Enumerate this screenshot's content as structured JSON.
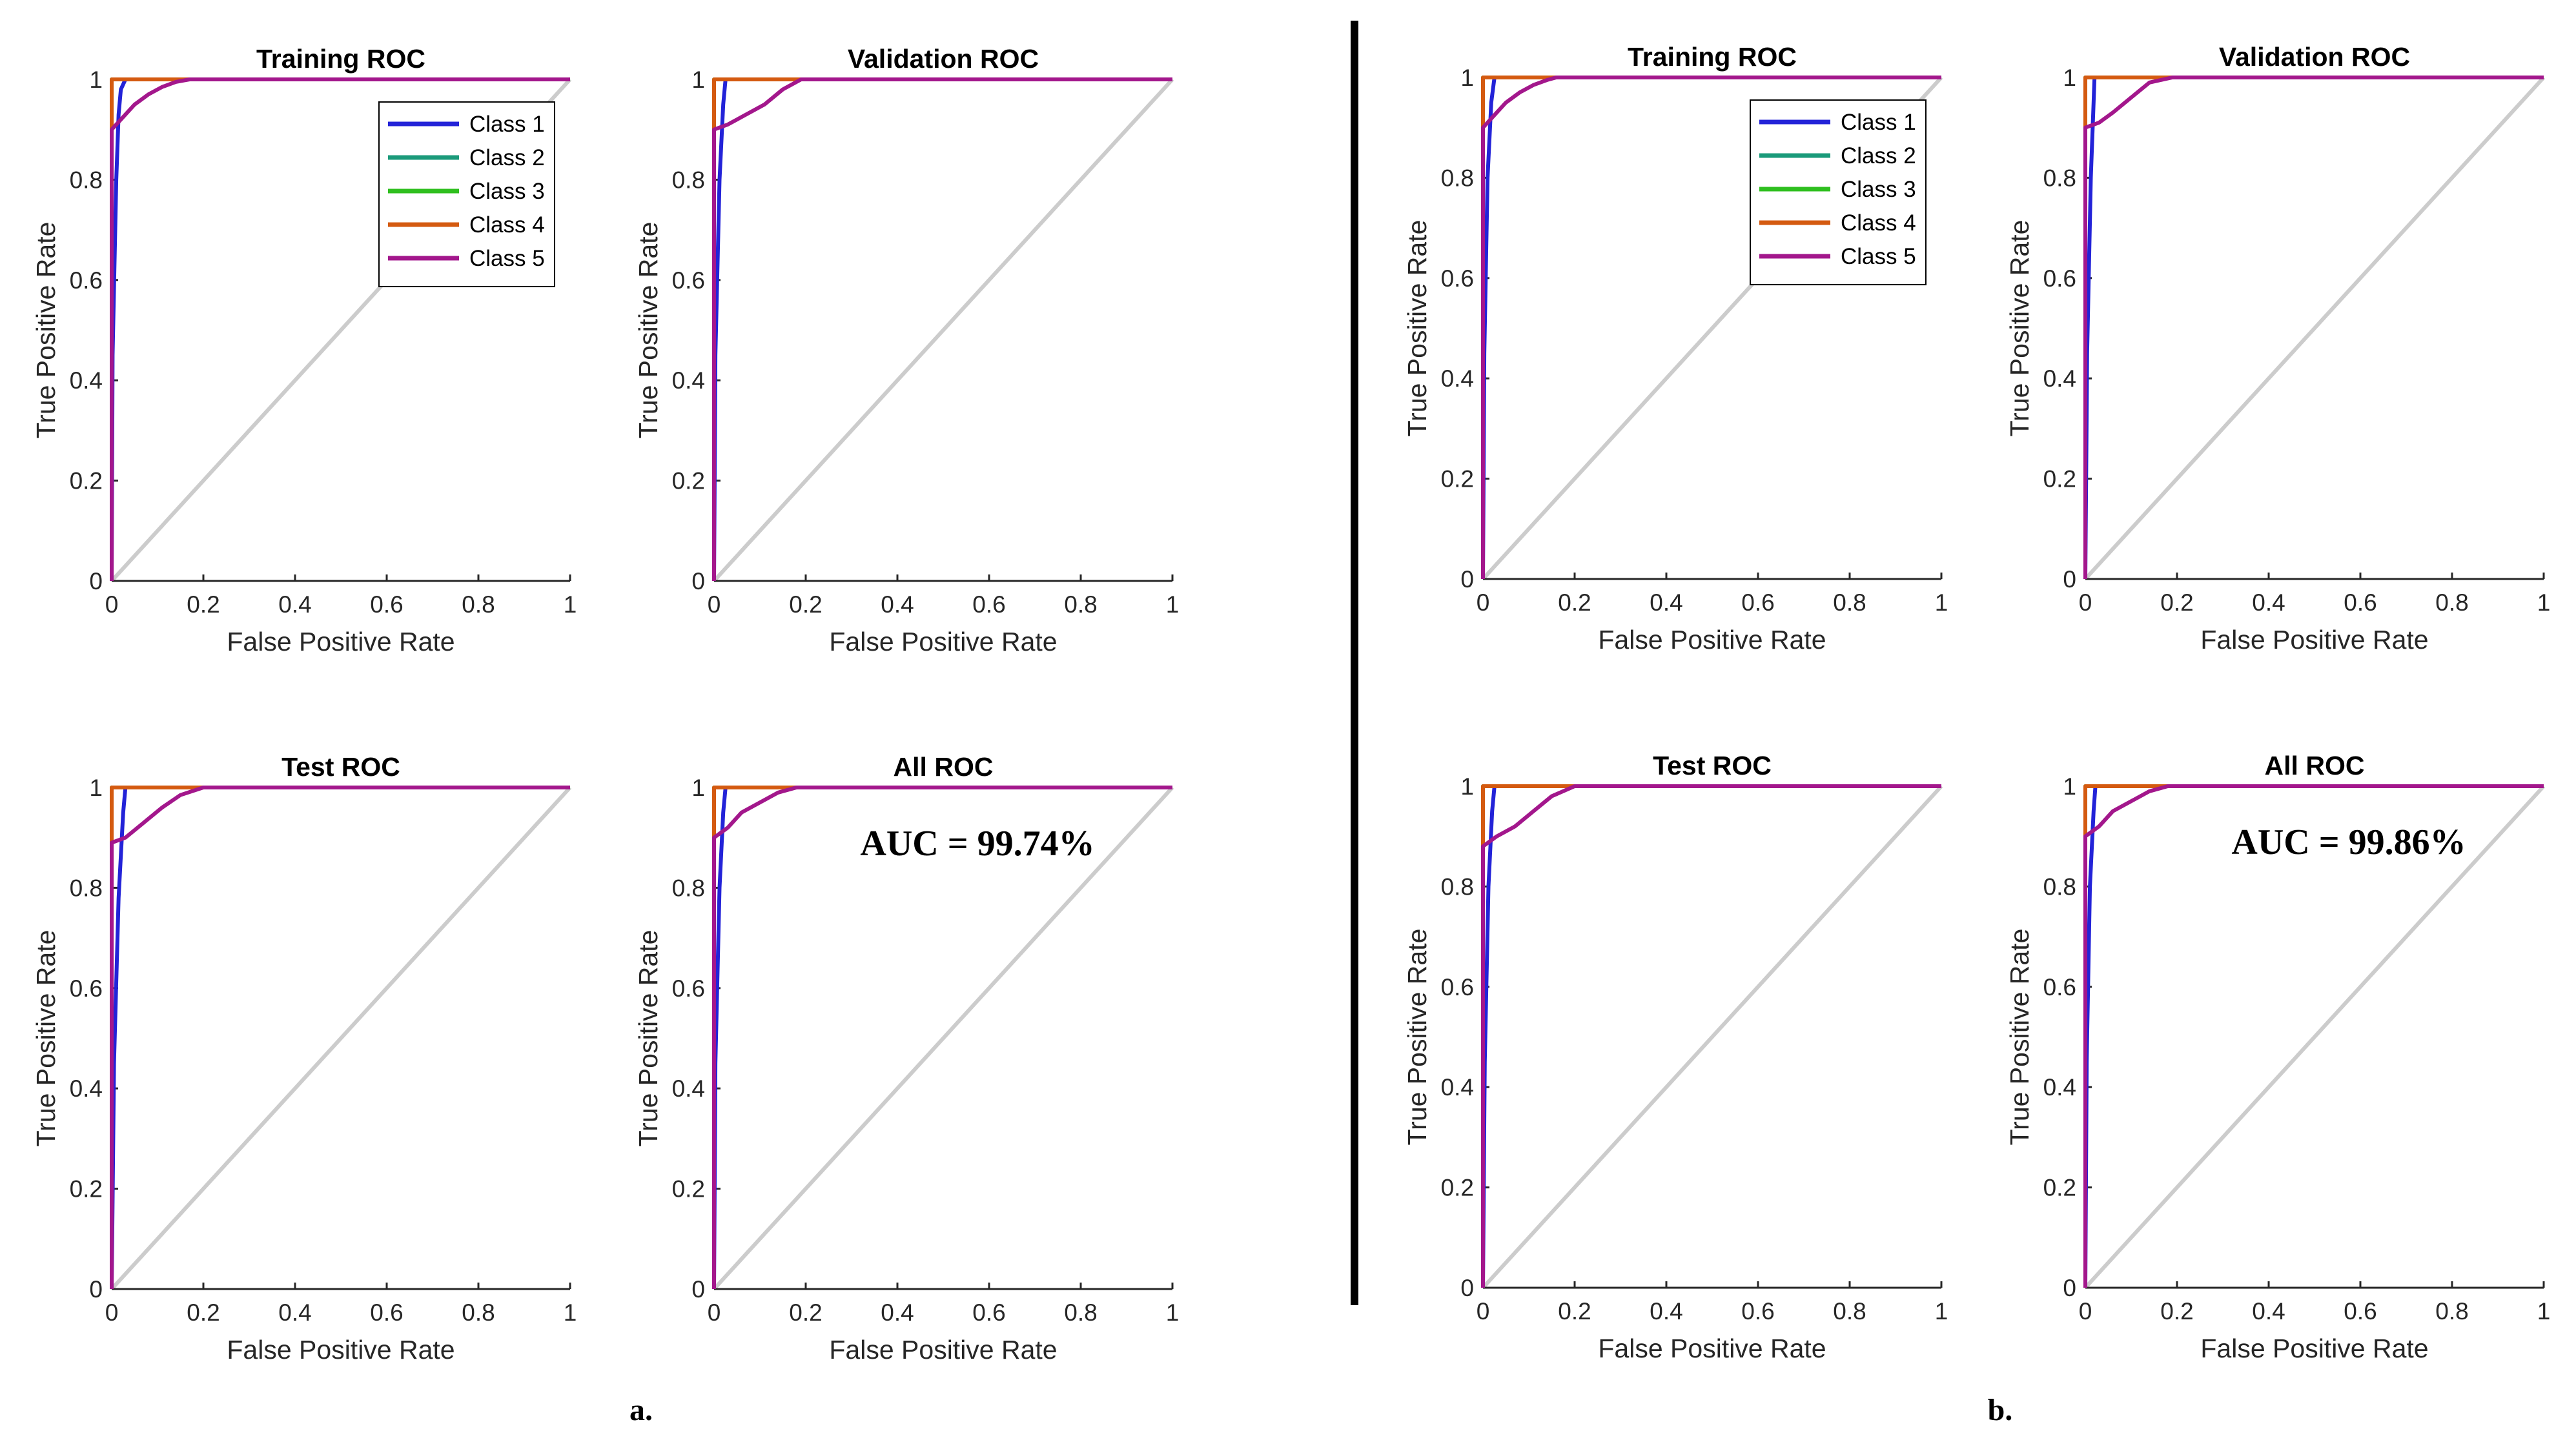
{
  "colors": {
    "Class 1": "#2323d8",
    "Class 2": "#1a9a7a",
    "Class 3": "#2fbf1f",
    "Class 4": "#d45a10",
    "Class 5": "#a3178c",
    "diagonal": "#cccccc",
    "axis": "#262626",
    "divider": "#000000"
  },
  "panel_labels": [
    "a.",
    "b."
  ],
  "common": {
    "xlabel": "False Positive Rate",
    "ylabel": "True Positive Rate",
    "xlim": [
      0,
      1
    ],
    "ylim": [
      0,
      1
    ],
    "xticks": [
      "0",
      "0.2",
      "0.4",
      "0.6",
      "0.8",
      "1"
    ],
    "yticks": [
      "0",
      "0.2",
      "0.4",
      "0.6",
      "0.8",
      "1"
    ],
    "grid": false,
    "reference_line": "diagonal"
  },
  "chart_data": [
    {
      "type": "line",
      "group": "a.",
      "title": "Training ROC",
      "xlabel": "False Positive Rate",
      "ylabel": "True Positive Rate",
      "xlim": [
        0,
        1
      ],
      "ylim": [
        0,
        1
      ],
      "legend": {
        "position": "top-right",
        "entries": [
          "Class 1",
          "Class 2",
          "Class 3",
          "Class 4",
          "Class 5"
        ]
      },
      "series": [
        {
          "name": "Class 1",
          "x": [
            0,
            0.002,
            0.01,
            0.015,
            0.02,
            0.03,
            1
          ],
          "y": [
            0,
            0.45,
            0.8,
            0.93,
            0.98,
            1,
            1
          ]
        },
        {
          "name": "Class 2",
          "x": [
            0,
            0,
            1
          ],
          "y": [
            0,
            1,
            1
          ]
        },
        {
          "name": "Class 3",
          "x": [
            0,
            0,
            1
          ],
          "y": [
            0,
            1,
            1
          ]
        },
        {
          "name": "Class 4",
          "x": [
            0,
            0,
            1
          ],
          "y": [
            0,
            1,
            1
          ]
        },
        {
          "name": "Class 5",
          "x": [
            0,
            0,
            0.02,
            0.05,
            0.08,
            0.11,
            0.14,
            0.17,
            1
          ],
          "y": [
            0,
            0.9,
            0.92,
            0.95,
            0.97,
            0.985,
            0.995,
            1,
            1
          ]
        }
      ]
    },
    {
      "type": "line",
      "group": "a.",
      "title": "Validation ROC",
      "xlabel": "False Positive Rate",
      "ylabel": "True Positive Rate",
      "xlim": [
        0,
        1
      ],
      "ylim": [
        0,
        1
      ],
      "series": [
        {
          "name": "Class 1",
          "x": [
            0,
            0.003,
            0.012,
            0.02,
            0.025,
            1
          ],
          "y": [
            0,
            0.45,
            0.8,
            0.95,
            1,
            1
          ]
        },
        {
          "name": "Class 2",
          "x": [
            0,
            0,
            1
          ],
          "y": [
            0,
            1,
            1
          ]
        },
        {
          "name": "Class 3",
          "x": [
            0,
            0,
            1
          ],
          "y": [
            0,
            1,
            1
          ]
        },
        {
          "name": "Class 4",
          "x": [
            0,
            0,
            1
          ],
          "y": [
            0,
            1,
            1
          ]
        },
        {
          "name": "Class 5",
          "x": [
            0,
            0,
            0.03,
            0.07,
            0.11,
            0.15,
            0.19,
            1
          ],
          "y": [
            0,
            0.9,
            0.91,
            0.93,
            0.95,
            0.98,
            1,
            1
          ]
        }
      ]
    },
    {
      "type": "line",
      "group": "a.",
      "title": "Test ROC",
      "xlabel": "False Positive Rate",
      "ylabel": "True Positive Rate",
      "xlim": [
        0,
        1
      ],
      "ylim": [
        0,
        1
      ],
      "series": [
        {
          "name": "Class 1",
          "x": [
            0,
            0.005,
            0.015,
            0.025,
            0.03,
            1
          ],
          "y": [
            0,
            0.45,
            0.78,
            0.95,
            1,
            1
          ]
        },
        {
          "name": "Class 2",
          "x": [
            0,
            0,
            1
          ],
          "y": [
            0,
            1,
            1
          ]
        },
        {
          "name": "Class 3",
          "x": [
            0,
            0,
            1
          ],
          "y": [
            0,
            1,
            1
          ]
        },
        {
          "name": "Class 4",
          "x": [
            0,
            0,
            1
          ],
          "y": [
            0,
            1,
            1
          ]
        },
        {
          "name": "Class 5",
          "x": [
            0,
            0,
            0.03,
            0.07,
            0.11,
            0.15,
            0.2,
            1
          ],
          "y": [
            0,
            0.89,
            0.9,
            0.93,
            0.96,
            0.985,
            1,
            1
          ]
        }
      ]
    },
    {
      "type": "line",
      "group": "a.",
      "title": "All ROC",
      "xlabel": "False Positive Rate",
      "ylabel": "True Positive Rate",
      "xlim": [
        0,
        1
      ],
      "ylim": [
        0,
        1
      ],
      "annotation": "AUC = 99.74%",
      "series": [
        {
          "name": "Class 1",
          "x": [
            0,
            0.003,
            0.012,
            0.02,
            0.025,
            1
          ],
          "y": [
            0,
            0.45,
            0.8,
            0.95,
            1,
            1
          ]
        },
        {
          "name": "Class 2",
          "x": [
            0,
            0,
            1
          ],
          "y": [
            0,
            1,
            1
          ]
        },
        {
          "name": "Class 3",
          "x": [
            0,
            0,
            1
          ],
          "y": [
            0,
            1,
            1
          ]
        },
        {
          "name": "Class 4",
          "x": [
            0,
            0,
            1
          ],
          "y": [
            0,
            1,
            1
          ]
        },
        {
          "name": "Class 5",
          "x": [
            0,
            0,
            0.03,
            0.06,
            0.1,
            0.14,
            0.18,
            1
          ],
          "y": [
            0,
            0.9,
            0.92,
            0.95,
            0.97,
            0.99,
            1,
            1
          ]
        }
      ]
    },
    {
      "type": "line",
      "group": "b.",
      "title": "Training ROC",
      "xlabel": "False Positive Rate",
      "ylabel": "True Positive Rate",
      "xlim": [
        0,
        1
      ],
      "ylim": [
        0,
        1
      ],
      "legend": {
        "position": "top-right",
        "entries": [
          "Class 1",
          "Class 2",
          "Class 3",
          "Class 4",
          "Class 5"
        ]
      },
      "series": [
        {
          "name": "Class 1",
          "x": [
            0,
            0.003,
            0.01,
            0.018,
            0.025,
            1
          ],
          "y": [
            0,
            0.45,
            0.8,
            0.95,
            1,
            1
          ]
        },
        {
          "name": "Class 2",
          "x": [
            0,
            0,
            1
          ],
          "y": [
            0,
            1,
            1
          ]
        },
        {
          "name": "Class 3",
          "x": [
            0,
            0,
            1
          ],
          "y": [
            0,
            1,
            1
          ]
        },
        {
          "name": "Class 4",
          "x": [
            0,
            0,
            1
          ],
          "y": [
            0,
            1,
            1
          ]
        },
        {
          "name": "Class 5",
          "x": [
            0,
            0,
            0.02,
            0.05,
            0.08,
            0.11,
            0.14,
            0.16,
            1
          ],
          "y": [
            0,
            0.9,
            0.92,
            0.95,
            0.97,
            0.985,
            0.995,
            1,
            1
          ]
        }
      ]
    },
    {
      "type": "line",
      "group": "b.",
      "title": "Validation ROC",
      "xlabel": "False Positive Rate",
      "ylabel": "True Positive Rate",
      "xlim": [
        0,
        1
      ],
      "ylim": [
        0,
        1
      ],
      "series": [
        {
          "name": "Class 1",
          "x": [
            0,
            0.004,
            0.012,
            0.018,
            0.02,
            1
          ],
          "y": [
            0,
            0.45,
            0.8,
            0.95,
            1,
            1
          ]
        },
        {
          "name": "Class 2",
          "x": [
            0,
            0,
            1
          ],
          "y": [
            0,
            1,
            1
          ]
        },
        {
          "name": "Class 3",
          "x": [
            0,
            0,
            1
          ],
          "y": [
            0,
            1,
            1
          ]
        },
        {
          "name": "Class 4",
          "x": [
            0,
            0,
            1
          ],
          "y": [
            0,
            1,
            1
          ]
        },
        {
          "name": "Class 5",
          "x": [
            0,
            0,
            0.03,
            0.06,
            0.1,
            0.14,
            0.19,
            1
          ],
          "y": [
            0,
            0.9,
            0.91,
            0.93,
            0.96,
            0.99,
            1,
            1
          ]
        }
      ]
    },
    {
      "type": "line",
      "group": "b.",
      "title": "Test ROC",
      "xlabel": "False Positive Rate",
      "ylabel": "True Positive Rate",
      "xlim": [
        0,
        1
      ],
      "ylim": [
        0,
        1
      ],
      "series": [
        {
          "name": "Class 1",
          "x": [
            0,
            0.004,
            0.012,
            0.02,
            0.025,
            1
          ],
          "y": [
            0,
            0.45,
            0.8,
            0.95,
            1,
            1
          ]
        },
        {
          "name": "Class 2",
          "x": [
            0,
            0,
            1
          ],
          "y": [
            0,
            1,
            1
          ]
        },
        {
          "name": "Class 3",
          "x": [
            0,
            0,
            1
          ],
          "y": [
            0,
            1,
            1
          ]
        },
        {
          "name": "Class 4",
          "x": [
            0,
            0,
            1
          ],
          "y": [
            0,
            1,
            1
          ]
        },
        {
          "name": "Class 5",
          "x": [
            0,
            0,
            0.03,
            0.07,
            0.11,
            0.15,
            0.2,
            1
          ],
          "y": [
            0,
            0.88,
            0.9,
            0.92,
            0.95,
            0.98,
            1,
            1
          ]
        }
      ]
    },
    {
      "type": "line",
      "group": "b.",
      "title": "All ROC",
      "xlabel": "False Positive Rate",
      "ylabel": "True Positive Rate",
      "xlim": [
        0,
        1
      ],
      "ylim": [
        0,
        1
      ],
      "annotation": "AUC = 99.86%",
      "series": [
        {
          "name": "Class 1",
          "x": [
            0,
            0.003,
            0.01,
            0.018,
            0.022,
            1
          ],
          "y": [
            0,
            0.45,
            0.8,
            0.95,
            1,
            1
          ]
        },
        {
          "name": "Class 2",
          "x": [
            0,
            0,
            1
          ],
          "y": [
            0,
            1,
            1
          ]
        },
        {
          "name": "Class 3",
          "x": [
            0,
            0,
            1
          ],
          "y": [
            0,
            1,
            1
          ]
        },
        {
          "name": "Class 4",
          "x": [
            0,
            0,
            1
          ],
          "y": [
            0,
            1,
            1
          ]
        },
        {
          "name": "Class 5",
          "x": [
            0,
            0,
            0.03,
            0.06,
            0.1,
            0.14,
            0.18,
            1
          ],
          "y": [
            0,
            0.9,
            0.92,
            0.95,
            0.97,
            0.99,
            1,
            1
          ]
        }
      ]
    }
  ]
}
